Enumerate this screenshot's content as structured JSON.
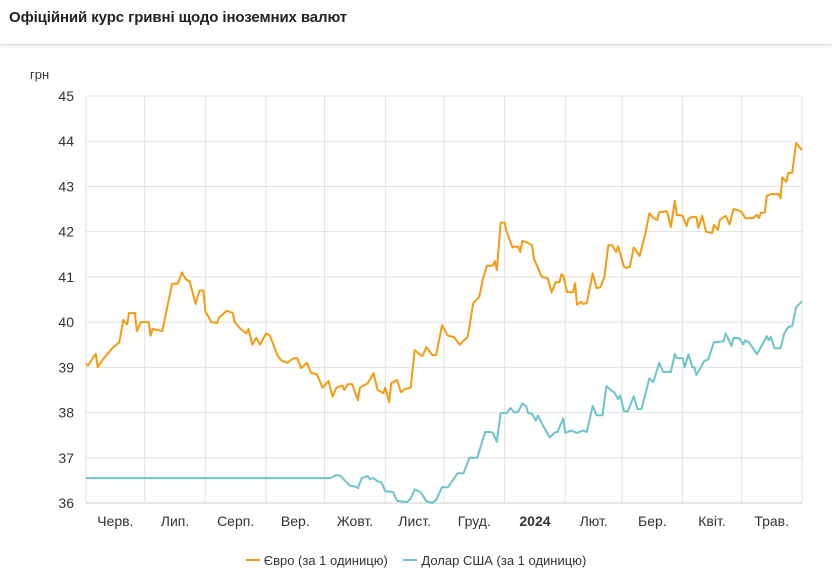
{
  "header": {
    "title": "Офіційний курс гривні щодо іноземних валют"
  },
  "chart_data": {
    "type": "line",
    "title": "Офіційний курс гривні щодо іноземних валют",
    "ylabel": "грн",
    "xlabel": "",
    "x_units": "days since 2023-06-01",
    "xlim": [
      0,
      366
    ],
    "ylim": [
      36,
      45
    ],
    "yticks": [
      36,
      37,
      38,
      39,
      40,
      41,
      42,
      43,
      44,
      45
    ],
    "month_boundaries": [
      0,
      30,
      61,
      92,
      122,
      153,
      183,
      214,
      245,
      274,
      305,
      335,
      366
    ],
    "xtick_labels": [
      "Черв.",
      "Лип.",
      "Серп.",
      "Вер.",
      "Жовт.",
      "Лист.",
      "Груд.",
      "2024",
      "Лют.",
      "Бер.",
      "Квіт.",
      "Трав."
    ],
    "grid": true,
    "legend_position": "bottom",
    "series": [
      {
        "name": "Євро (за 1 одиницю)",
        "color": "#f39c12",
        "points": [
          [
            -2,
            39.15
          ],
          [
            1,
            39.04
          ],
          [
            5,
            39.3
          ],
          [
            6,
            39.0
          ],
          [
            9,
            39.2
          ],
          [
            14,
            39.45
          ],
          [
            17,
            39.55
          ],
          [
            19,
            40.05
          ],
          [
            21,
            39.95
          ],
          [
            22,
            40.2
          ],
          [
            25,
            40.2
          ],
          [
            26,
            39.8
          ],
          [
            28,
            40.0
          ],
          [
            32,
            40.0
          ],
          [
            33,
            39.7
          ],
          [
            34,
            39.85
          ],
          [
            39,
            39.8
          ],
          [
            44,
            40.85
          ],
          [
            47,
            40.85
          ],
          [
            49,
            41.1
          ],
          [
            51,
            40.95
          ],
          [
            53,
            40.9
          ],
          [
            56,
            40.4
          ],
          [
            58,
            40.7
          ],
          [
            60,
            40.7
          ],
          [
            61,
            40.25
          ],
          [
            64,
            40.0
          ],
          [
            67,
            39.98
          ],
          [
            68,
            40.1
          ],
          [
            72,
            40.25
          ],
          [
            75,
            40.2
          ],
          [
            76,
            40.0
          ],
          [
            79,
            39.85
          ],
          [
            82,
            39.75
          ],
          [
            83,
            39.85
          ],
          [
            85,
            39.5
          ],
          [
            87,
            39.65
          ],
          [
            89,
            39.5
          ],
          [
            92,
            39.75
          ],
          [
            94,
            39.7
          ],
          [
            98,
            39.25
          ],
          [
            100,
            39.15
          ],
          [
            103,
            39.1
          ],
          [
            106,
            39.2
          ],
          [
            108,
            39.2
          ],
          [
            110,
            38.98
          ],
          [
            113,
            39.1
          ],
          [
            115,
            38.88
          ],
          [
            118,
            38.85
          ],
          [
            121,
            38.55
          ],
          [
            124,
            38.7
          ],
          [
            126,
            38.35
          ],
          [
            128,
            38.55
          ],
          [
            131,
            38.6
          ],
          [
            132,
            38.5
          ],
          [
            134,
            38.63
          ],
          [
            136,
            38.63
          ],
          [
            139,
            38.27
          ],
          [
            140,
            38.55
          ],
          [
            144,
            38.65
          ],
          [
            147,
            38.87
          ],
          [
            149,
            38.5
          ],
          [
            152,
            38.43
          ],
          [
            153,
            38.55
          ],
          [
            155,
            38.23
          ],
          [
            156,
            38.65
          ],
          [
            159,
            38.72
          ],
          [
            161,
            38.45
          ],
          [
            163,
            38.52
          ],
          [
            166,
            38.55
          ],
          [
            168,
            39.38
          ],
          [
            171,
            39.27
          ],
          [
            172,
            39.25
          ],
          [
            174,
            39.45
          ],
          [
            177,
            39.27
          ],
          [
            179,
            39.27
          ],
          [
            182,
            39.93
          ],
          [
            185,
            39.7
          ],
          [
            188,
            39.67
          ],
          [
            191,
            39.5
          ],
          [
            195,
            39.67
          ],
          [
            196,
            39.9
          ],
          [
            198,
            40.42
          ],
          [
            201,
            40.55
          ],
          [
            203,
            40.97
          ],
          [
            205,
            41.25
          ],
          [
            208,
            41.25
          ],
          [
            209,
            41.35
          ],
          [
            210,
            41.15
          ],
          [
            212,
            42.2
          ],
          [
            214,
            42.2
          ],
          [
            215,
            42.0
          ],
          [
            218,
            41.65
          ],
          [
            219,
            41.67
          ],
          [
            221,
            41.67
          ],
          [
            222,
            41.55
          ],
          [
            223,
            41.8
          ],
          [
            226,
            41.75
          ],
          [
            228,
            41.7
          ],
          [
            229,
            41.4
          ],
          [
            231,
            41.2
          ],
          [
            233,
            41.0
          ],
          [
            236,
            40.97
          ],
          [
            238,
            40.66
          ],
          [
            240,
            40.88
          ],
          [
            242,
            40.88
          ],
          [
            243,
            41.06
          ],
          [
            244,
            41.02
          ],
          [
            246,
            40.66
          ],
          [
            249,
            40.66
          ],
          [
            250,
            40.86
          ],
          [
            251,
            40.38
          ],
          [
            253,
            40.45
          ],
          [
            254,
            40.4
          ],
          [
            256,
            40.42
          ],
          [
            259,
            41.08
          ],
          [
            261,
            40.75
          ],
          [
            263,
            40.77
          ],
          [
            265,
            41.0
          ],
          [
            267,
            41.7
          ],
          [
            269,
            41.7
          ],
          [
            271,
            41.55
          ],
          [
            272,
            41.68
          ],
          [
            275,
            41.22
          ],
          [
            276,
            41.2
          ],
          [
            278,
            41.22
          ],
          [
            280,
            41.65
          ],
          [
            282,
            41.53
          ],
          [
            283,
            41.46
          ],
          [
            286,
            41.97
          ],
          [
            288,
            42.41
          ],
          [
            290,
            42.3
          ],
          [
            292,
            42.26
          ],
          [
            293,
            42.43
          ],
          [
            297,
            42.45
          ],
          [
            299,
            42.1
          ],
          [
            301,
            42.68
          ],
          [
            302,
            42.37
          ],
          [
            305,
            42.35
          ],
          [
            307,
            42.12
          ],
          [
            308,
            42.28
          ],
          [
            310,
            42.33
          ],
          [
            312,
            42.32
          ],
          [
            313,
            42.08
          ],
          [
            315,
            42.35
          ],
          [
            317,
            42.0
          ],
          [
            320,
            41.97
          ],
          [
            321,
            42.15
          ],
          [
            323,
            42.04
          ],
          [
            324,
            42.26
          ],
          [
            327,
            42.35
          ],
          [
            329,
            42.16
          ],
          [
            331,
            42.5
          ],
          [
            333,
            42.48
          ],
          [
            335,
            42.44
          ],
          [
            337,
            42.3
          ],
          [
            341,
            42.3
          ],
          [
            343,
            42.37
          ],
          [
            344,
            42.3
          ],
          [
            345,
            42.42
          ],
          [
            347,
            42.42
          ],
          [
            348,
            42.79
          ],
          [
            350,
            42.83
          ],
          [
            354,
            42.83
          ],
          [
            355,
            42.74
          ],
          [
            356,
            43.2
          ],
          [
            358,
            43.1
          ],
          [
            359,
            43.3
          ],
          [
            361,
            43.3
          ],
          [
            363,
            43.96
          ],
          [
            366,
            43.8
          ]
        ]
      },
      {
        "name": "Долар США (за 1 одиницю)",
        "color": "#6cc5c8",
        "points": [
          [
            0,
            36.55
          ],
          [
            125,
            36.55
          ],
          [
            128,
            36.62
          ],
          [
            130,
            36.6
          ],
          [
            135,
            36.38
          ],
          [
            138,
            36.36
          ],
          [
            139,
            36.33
          ],
          [
            141,
            36.55
          ],
          [
            144,
            36.6
          ],
          [
            145,
            36.53
          ],
          [
            147,
            36.55
          ],
          [
            149,
            36.48
          ],
          [
            151,
            36.46
          ],
          [
            153,
            36.26
          ],
          [
            157,
            36.24
          ],
          [
            159,
            36.05
          ],
          [
            164,
            36.02
          ],
          [
            166,
            36.1
          ],
          [
            168,
            36.3
          ],
          [
            171,
            36.24
          ],
          [
            174,
            36.04
          ],
          [
            177,
            36.0
          ],
          [
            179,
            36.07
          ],
          [
            182,
            36.35
          ],
          [
            185,
            36.35
          ],
          [
            190,
            36.66
          ],
          [
            193,
            36.66
          ],
          [
            196,
            37.0
          ],
          [
            200,
            37.0
          ],
          [
            204,
            37.57
          ],
          [
            207,
            37.57
          ],
          [
            208,
            37.55
          ],
          [
            210,
            37.35
          ],
          [
            212,
            37.99
          ],
          [
            215,
            37.99
          ],
          [
            217,
            38.1
          ],
          [
            219,
            38.0
          ],
          [
            221,
            38.02
          ],
          [
            223,
            38.2
          ],
          [
            225,
            38.14
          ],
          [
            226,
            37.99
          ],
          [
            228,
            37.97
          ],
          [
            230,
            37.82
          ],
          [
            231,
            37.93
          ],
          [
            234,
            37.68
          ],
          [
            237,
            37.45
          ],
          [
            240,
            37.57
          ],
          [
            241,
            37.57
          ],
          [
            244,
            37.87
          ],
          [
            245,
            37.55
          ],
          [
            248,
            37.6
          ],
          [
            251,
            37.55
          ],
          [
            254,
            37.6
          ],
          [
            256,
            37.57
          ],
          [
            259,
            38.15
          ],
          [
            261,
            37.94
          ],
          [
            264,
            37.94
          ],
          [
            266,
            38.58
          ],
          [
            269,
            38.47
          ],
          [
            270,
            38.45
          ],
          [
            272,
            38.3
          ],
          [
            273,
            38.38
          ],
          [
            275,
            38.03
          ],
          [
            277,
            38.03
          ],
          [
            280,
            38.36
          ],
          [
            282,
            38.07
          ],
          [
            284,
            38.08
          ],
          [
            288,
            38.76
          ],
          [
            290,
            38.67
          ],
          [
            293,
            39.1
          ],
          [
            295,
            38.9
          ],
          [
            299,
            38.9
          ],
          [
            301,
            39.3
          ],
          [
            302,
            39.2
          ],
          [
            305,
            39.2
          ],
          [
            306,
            39.0
          ],
          [
            308,
            39.29
          ],
          [
            310,
            39.0
          ],
          [
            311,
            39.0
          ],
          [
            312,
            38.83
          ],
          [
            314,
            38.98
          ],
          [
            316,
            39.14
          ],
          [
            318,
            39.17
          ],
          [
            321,
            39.56
          ],
          [
            323,
            39.56
          ],
          [
            326,
            39.58
          ],
          [
            327,
            39.75
          ],
          [
            330,
            39.47
          ],
          [
            331,
            39.65
          ],
          [
            334,
            39.64
          ],
          [
            336,
            39.51
          ],
          [
            337,
            39.6
          ],
          [
            339,
            39.55
          ],
          [
            343,
            39.29
          ],
          [
            346,
            39.53
          ],
          [
            348,
            39.69
          ],
          [
            349,
            39.6
          ],
          [
            350,
            39.67
          ],
          [
            352,
            39.42
          ],
          [
            355,
            39.42
          ],
          [
            357,
            39.76
          ],
          [
            359,
            39.89
          ],
          [
            361,
            39.91
          ],
          [
            363,
            40.33
          ],
          [
            366,
            40.46
          ]
        ]
      }
    ]
  }
}
